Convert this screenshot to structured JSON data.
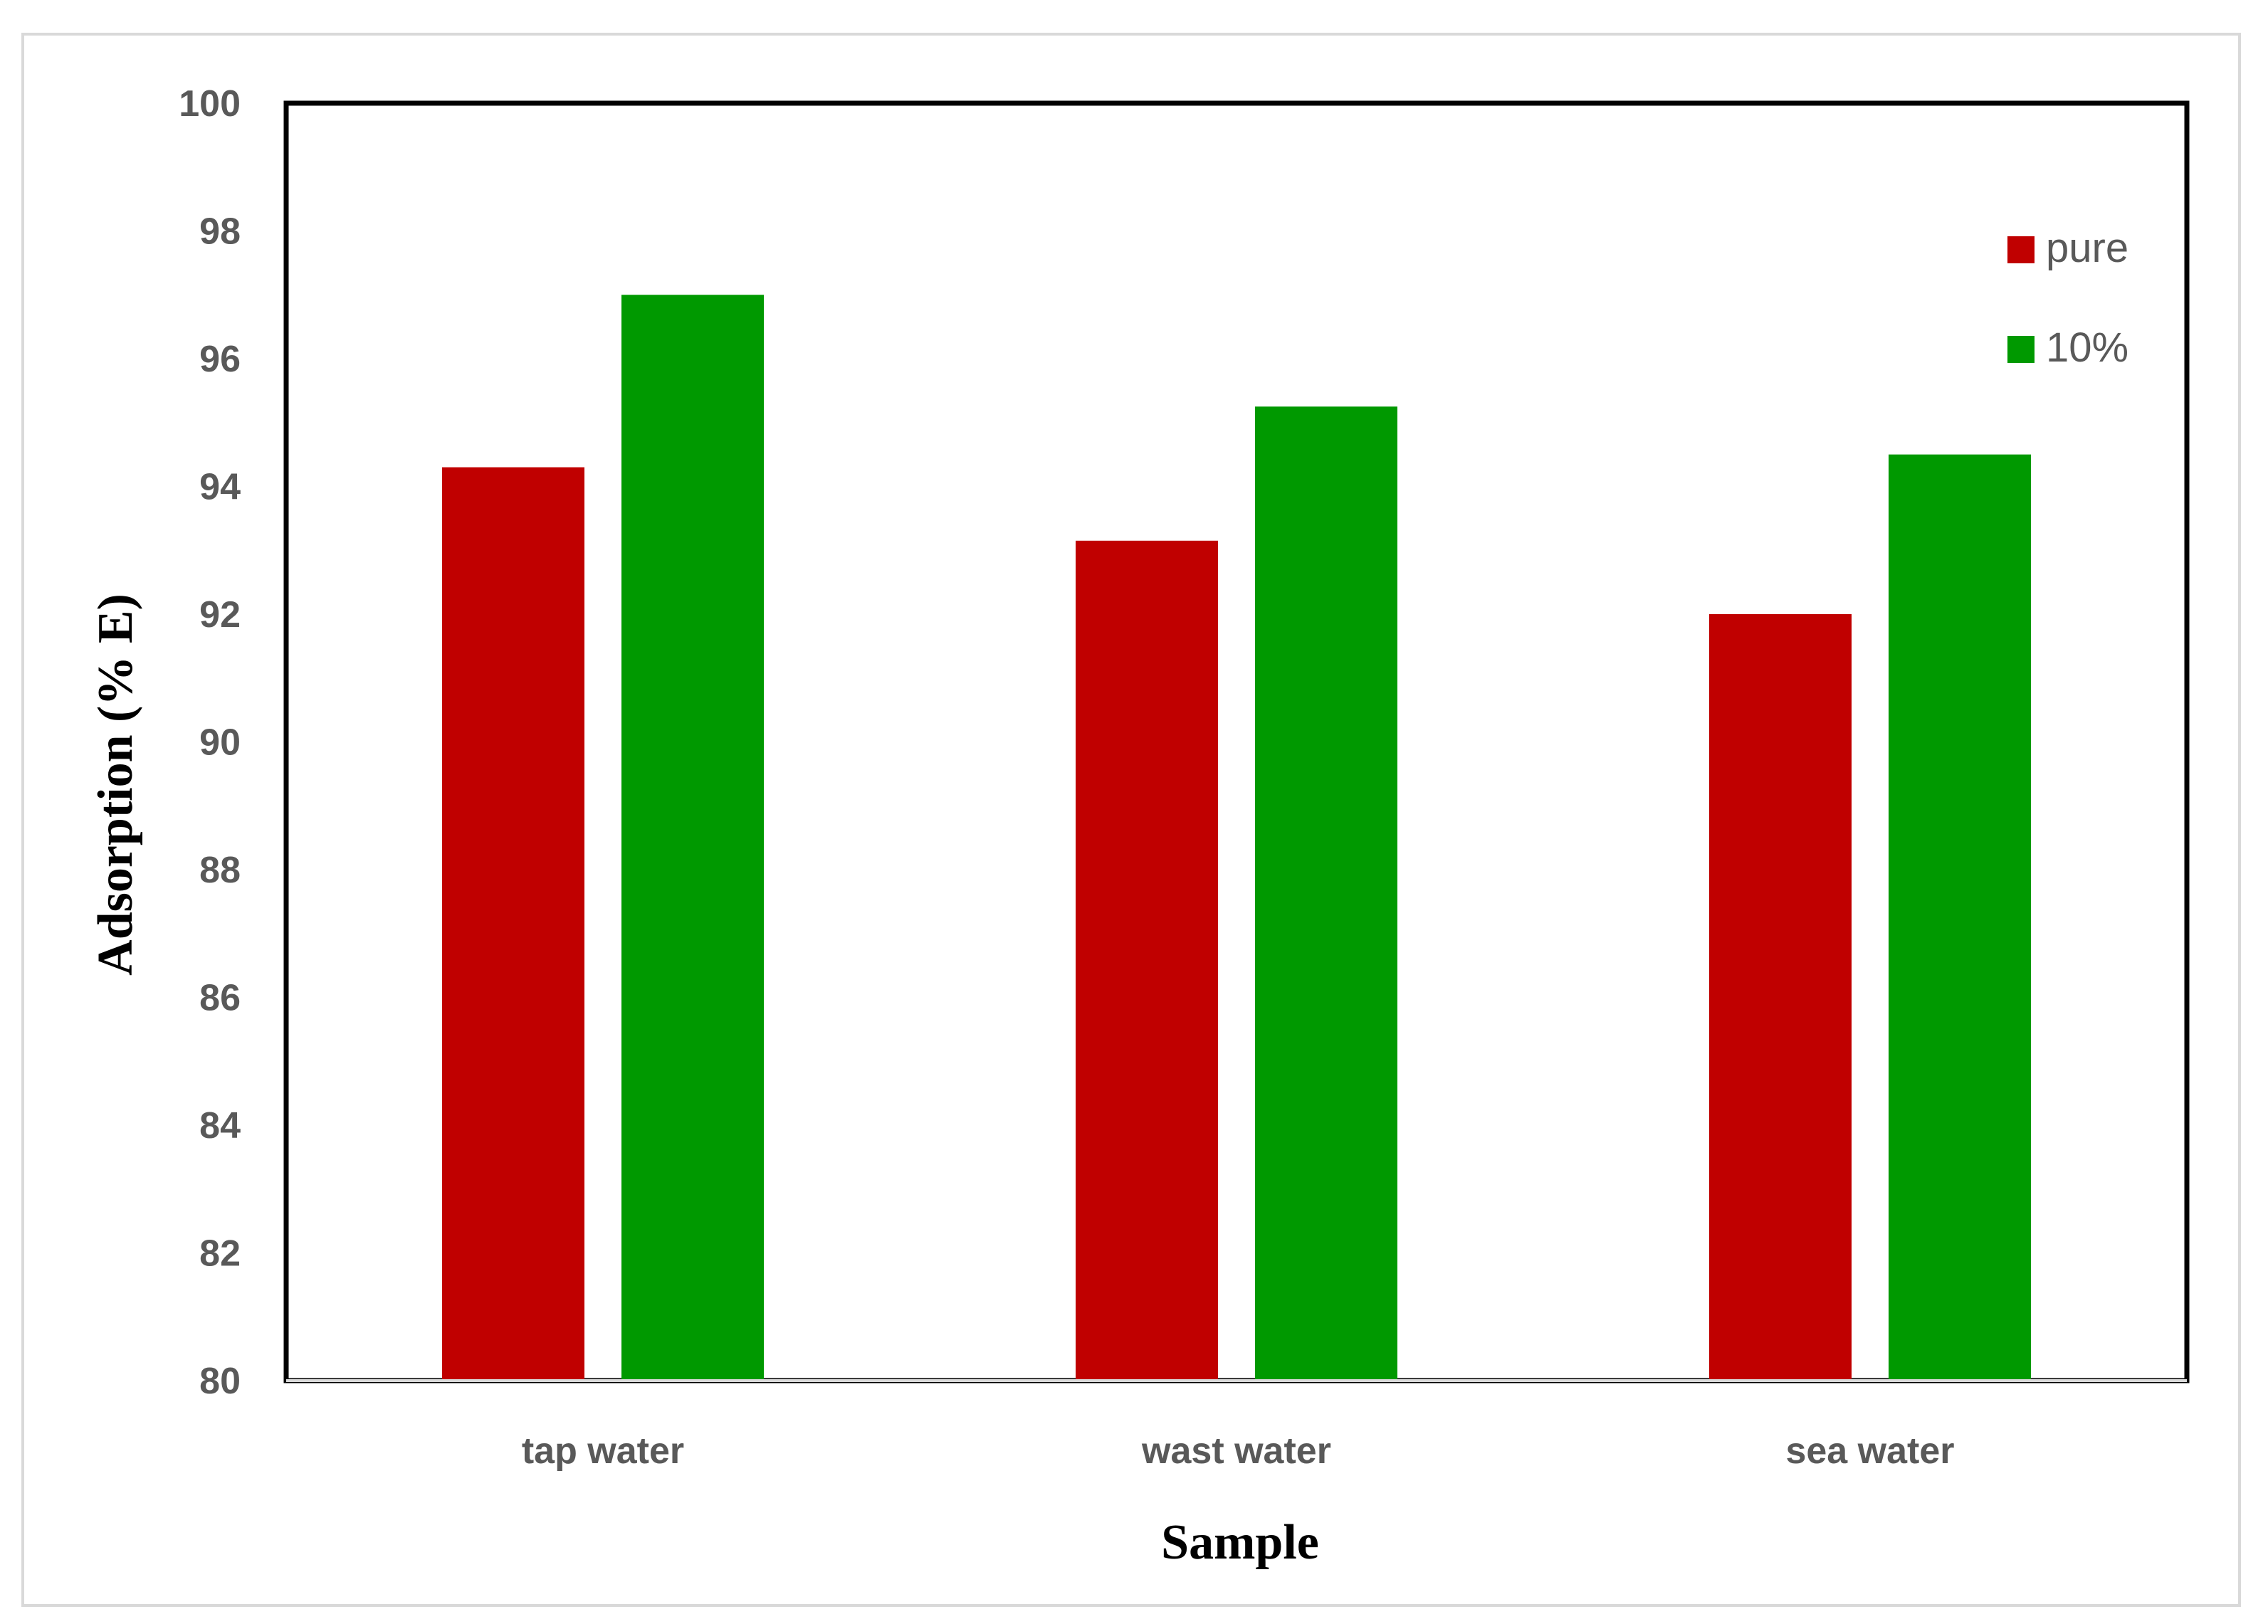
{
  "chart_data": {
    "type": "bar",
    "categories": [
      "tap water",
      "wast water",
      "sea water"
    ],
    "series": [
      {
        "name": "pure",
        "color": "#c00000",
        "values": [
          94.3,
          93.15,
          92.0
        ]
      },
      {
        "name": "10%",
        "color": "#009900",
        "values": [
          97.0,
          95.25,
          94.5
        ]
      }
    ],
    "xlabel": "Sample",
    "ylabel": "Adsorption (% E)",
    "ylim": [
      80,
      100
    ],
    "yticks": [
      "80",
      "82",
      "84",
      "86",
      "88",
      "90",
      "92",
      "94",
      "96",
      "98",
      "100"
    ],
    "grid": false,
    "legend_position": "top-right"
  }
}
